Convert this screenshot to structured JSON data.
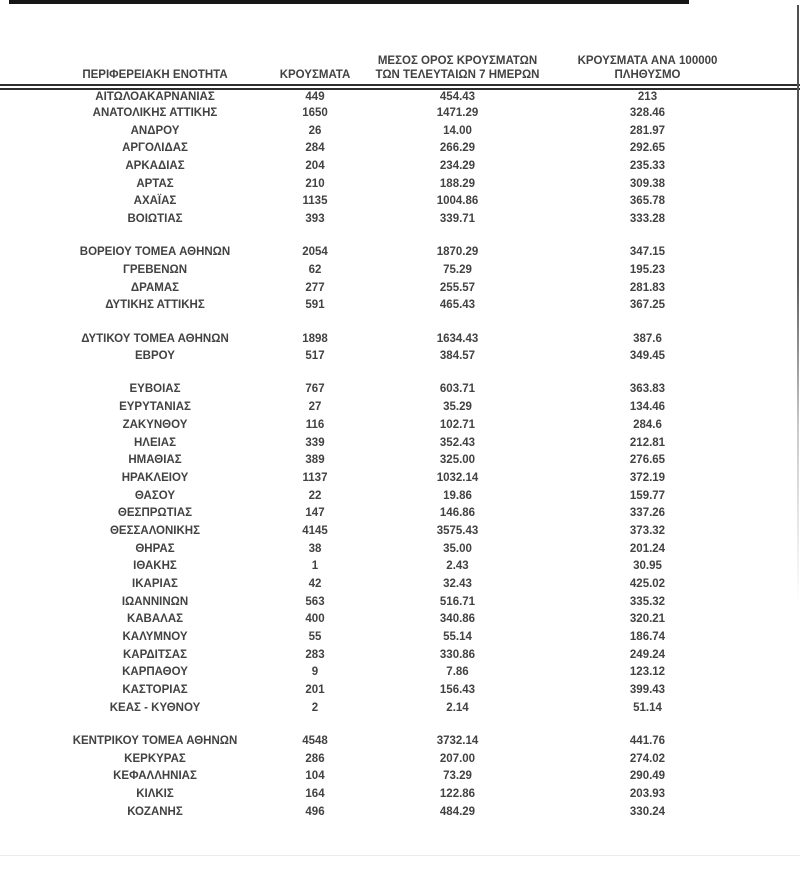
{
  "document": {
    "language": "el",
    "description_colors": {
      "text": "#424242",
      "rules": "#2e2e2e"
    }
  },
  "table": {
    "columns": [
      {
        "label": "ΠΕΡΙΦΕΡΕΙΑΚΗ ΕΝΟΤΗΤΑ"
      },
      {
        "label": "ΚΡΟΥΣΜΑΤΑ"
      },
      {
        "label_line1": "ΜΕΣΟΣ ΟΡΟΣ ΚΡΟΥΣΜΑΤΩΝ",
        "label_line2": "ΤΩΝ ΤΕΛΕΥΤΑΙΩΝ 7 ΗΜΕΡΩΝ"
      },
      {
        "label_line1": "ΚΡΟΥΣΜΑΤΑ ΑΝΑ 100000",
        "label_line2": "ΠΛΗΘΥΣΜΟ"
      }
    ],
    "groups": [
      {
        "rows": [
          {
            "region": "ΑΙΤΩΛΟΑΚΑΡΝΑΝΙΑΣ",
            "cases": "449",
            "avg_7day": "454.43",
            "per_100k": "213"
          },
          {
            "region": "ΑΝΑΤΟΛΙΚΗΣ ΑΤΤΙΚΗΣ",
            "cases": "1650",
            "avg_7day": "1471.29",
            "per_100k": "328.46"
          },
          {
            "region": "ΑΝΔΡΟΥ",
            "cases": "26",
            "avg_7day": "14.00",
            "per_100k": "281.97"
          },
          {
            "region": "ΑΡΓΟΛΙΔΑΣ",
            "cases": "284",
            "avg_7day": "266.29",
            "per_100k": "292.65"
          },
          {
            "region": "ΑΡΚΑΔΙΑΣ",
            "cases": "204",
            "avg_7day": "234.29",
            "per_100k": "235.33"
          },
          {
            "region": "ΑΡΤΑΣ",
            "cases": "210",
            "avg_7day": "188.29",
            "per_100k": "309.38"
          },
          {
            "region": "ΑΧΑΪΑΣ",
            "cases": "1135",
            "avg_7day": "1004.86",
            "per_100k": "365.78"
          },
          {
            "region": "ΒΟΙΩΤΙΑΣ",
            "cases": "393",
            "avg_7day": "339.71",
            "per_100k": "333.28"
          }
        ]
      },
      {
        "rows": [
          {
            "region": "ΒΟΡΕΙΟΥ ΤΟΜΕΑ ΑΘΗΝΩΝ",
            "cases": "2054",
            "avg_7day": "1870.29",
            "per_100k": "347.15"
          },
          {
            "region": "ΓΡΕΒΕΝΩΝ",
            "cases": "62",
            "avg_7day": "75.29",
            "per_100k": "195.23"
          },
          {
            "region": "ΔΡΑΜΑΣ",
            "cases": "277",
            "avg_7day": "255.57",
            "per_100k": "281.83"
          },
          {
            "region": "ΔΥΤΙΚΗΣ ΑΤΤΙΚΗΣ",
            "cases": "591",
            "avg_7day": "465.43",
            "per_100k": "367.25"
          }
        ]
      },
      {
        "rows": [
          {
            "region": "ΔΥΤΙΚΟΥ ΤΟΜΕΑ ΑΘΗΝΩΝ",
            "cases": "1898",
            "avg_7day": "1634.43",
            "per_100k": "387.6"
          },
          {
            "region": "ΕΒΡΟΥ",
            "cases": "517",
            "avg_7day": "384.57",
            "per_100k": "349.45"
          }
        ]
      },
      {
        "rows": [
          {
            "region": "ΕΥΒΟΙΑΣ",
            "cases": "767",
            "avg_7day": "603.71",
            "per_100k": "363.83"
          },
          {
            "region": "ΕΥΡΥΤΑΝΙΑΣ",
            "cases": "27",
            "avg_7day": "35.29",
            "per_100k": "134.46"
          },
          {
            "region": "ΖΑΚΥΝΘΟΥ",
            "cases": "116",
            "avg_7day": "102.71",
            "per_100k": "284.6"
          },
          {
            "region": "ΗΛΕΙΑΣ",
            "cases": "339",
            "avg_7day": "352.43",
            "per_100k": "212.81"
          },
          {
            "region": "ΗΜΑΘΙΑΣ",
            "cases": "389",
            "avg_7day": "325.00",
            "per_100k": "276.65"
          },
          {
            "region": "ΗΡΑΚΛΕΙΟΥ",
            "cases": "1137",
            "avg_7day": "1032.14",
            "per_100k": "372.19"
          },
          {
            "region": "ΘΑΣΟΥ",
            "cases": "22",
            "avg_7day": "19.86",
            "per_100k": "159.77"
          },
          {
            "region": "ΘΕΣΠΡΩΤΙΑΣ",
            "cases": "147",
            "avg_7day": "146.86",
            "per_100k": "337.26"
          },
          {
            "region": "ΘΕΣΣΑΛΟΝΙΚΗΣ",
            "cases": "4145",
            "avg_7day": "3575.43",
            "per_100k": "373.32"
          },
          {
            "region": "ΘΗΡΑΣ",
            "cases": "38",
            "avg_7day": "35.00",
            "per_100k": "201.24"
          },
          {
            "region": "ΙΘΑΚΗΣ",
            "cases": "1",
            "avg_7day": "2.43",
            "per_100k": "30.95"
          },
          {
            "region": "ΙΚΑΡΙΑΣ",
            "cases": "42",
            "avg_7day": "32.43",
            "per_100k": "425.02"
          },
          {
            "region": "ΙΩΑΝΝΙΝΩΝ",
            "cases": "563",
            "avg_7day": "516.71",
            "per_100k": "335.32"
          },
          {
            "region": "ΚΑΒΑΛΑΣ",
            "cases": "400",
            "avg_7day": "340.86",
            "per_100k": "320.21"
          },
          {
            "region": "ΚΑΛΥΜΝΟΥ",
            "cases": "55",
            "avg_7day": "55.14",
            "per_100k": "186.74"
          },
          {
            "region": "ΚΑΡΔΙΤΣΑΣ",
            "cases": "283",
            "avg_7day": "330.86",
            "per_100k": "249.24"
          },
          {
            "region": "ΚΑΡΠΑΘΟΥ",
            "cases": "9",
            "avg_7day": "7.86",
            "per_100k": "123.12"
          },
          {
            "region": "ΚΑΣΤΟΡΙΑΣ",
            "cases": "201",
            "avg_7day": "156.43",
            "per_100k": "399.43"
          },
          {
            "region": "ΚΕΑΣ - ΚΥΘΝΟΥ",
            "cases": "2",
            "avg_7day": "2.14",
            "per_100k": "51.14"
          }
        ]
      },
      {
        "rows": [
          {
            "region": "ΚΕΝΤΡΙΚΟΥ ΤΟΜΕΑ ΑΘΗΝΩΝ",
            "cases": "4548",
            "avg_7day": "3732.14",
            "per_100k": "441.76"
          },
          {
            "region": "ΚΕΡΚΥΡΑΣ",
            "cases": "286",
            "avg_7day": "207.00",
            "per_100k": "274.02"
          },
          {
            "region": "ΚΕΦΑΛΛΗΝΙΑΣ",
            "cases": "104",
            "avg_7day": "73.29",
            "per_100k": "290.49"
          },
          {
            "region": "ΚΙΛΚΙΣ",
            "cases": "164",
            "avg_7day": "122.86",
            "per_100k": "203.93"
          },
          {
            "region": "ΚΟΖΑΝΗΣ",
            "cases": "496",
            "avg_7day": "484.29",
            "per_100k": "330.24"
          }
        ]
      }
    ]
  }
}
